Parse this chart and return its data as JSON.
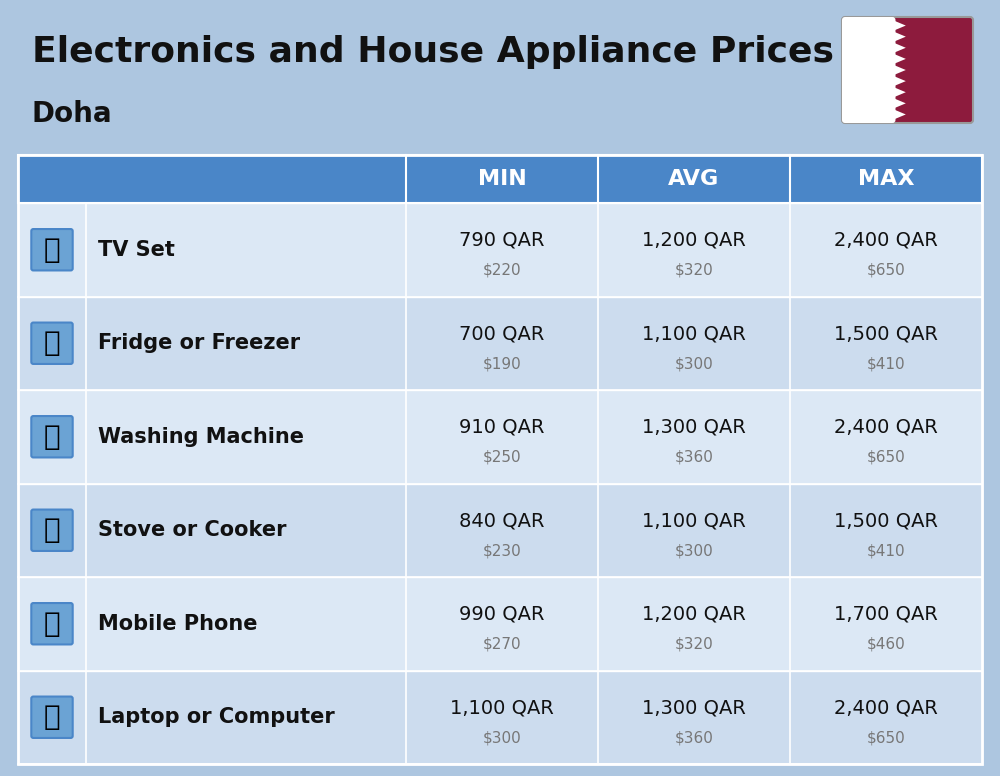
{
  "title": "Electronics and House Appliance Prices",
  "subtitle": "Doha",
  "background_color": "#adc6e0",
  "header_color": "#4a86c8",
  "header_text_color": "#ffffff",
  "row_color_even": "#dce8f5",
  "row_color_odd": "#ccdcee",
  "title_fontsize": 26,
  "subtitle_fontsize": 20,
  "col_headers": [
    "MIN",
    "AVG",
    "MAX"
  ],
  "rows": [
    {
      "label": "TV Set",
      "min_qar": "790 QAR",
      "min_usd": "$220",
      "avg_qar": "1,200 QAR",
      "avg_usd": "$320",
      "max_qar": "2,400 QAR",
      "max_usd": "$650"
    },
    {
      "label": "Fridge or Freezer",
      "min_qar": "700 QAR",
      "min_usd": "$190",
      "avg_qar": "1,100 QAR",
      "avg_usd": "$300",
      "max_qar": "1,500 QAR",
      "max_usd": "$410"
    },
    {
      "label": "Washing Machine",
      "min_qar": "910 QAR",
      "min_usd": "$250",
      "avg_qar": "1,300 QAR",
      "avg_usd": "$360",
      "max_qar": "2,400 QAR",
      "max_usd": "$650"
    },
    {
      "label": "Stove or Cooker",
      "min_qar": "840 QAR",
      "min_usd": "$230",
      "avg_qar": "1,100 QAR",
      "avg_usd": "$300",
      "max_qar": "1,500 QAR",
      "max_usd": "$410"
    },
    {
      "label": "Mobile Phone",
      "min_qar": "990 QAR",
      "min_usd": "$270",
      "avg_qar": "1,200 QAR",
      "avg_usd": "$320",
      "max_qar": "1,700 QAR",
      "max_usd": "$460"
    },
    {
      "label": "Laptop or Computer",
      "min_qar": "1,100 QAR",
      "min_usd": "$300",
      "avg_qar": "1,300 QAR",
      "avg_usd": "$360",
      "max_qar": "2,400 QAR",
      "max_usd": "$650"
    }
  ],
  "icon_texts": [
    "📺",
    "🍧",
    "🧺",
    "🔥",
    "📱",
    "💻"
  ],
  "qatar_maroon": "#8d1b3d"
}
